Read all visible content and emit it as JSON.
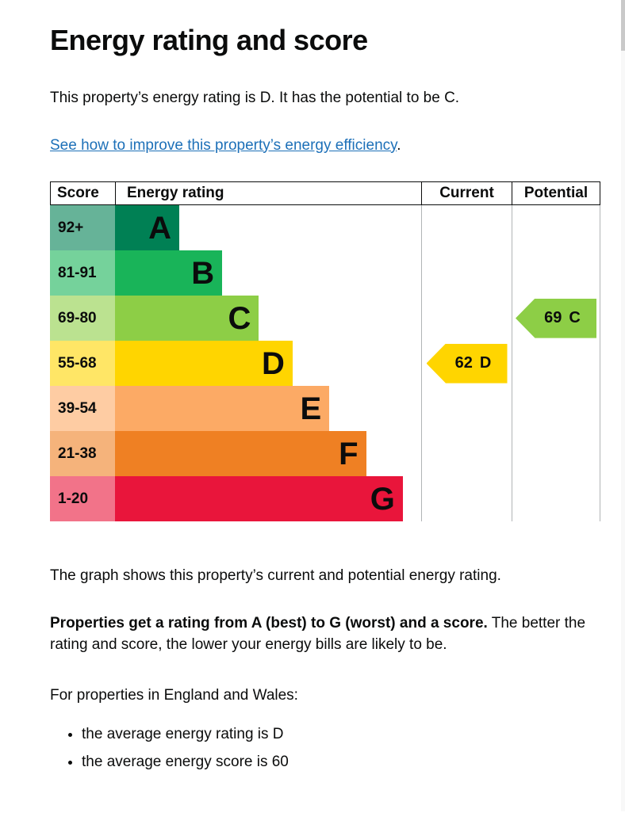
{
  "page": {
    "title": "Energy rating and score",
    "intro": "This property’s energy rating is D. It has the potential to be C.",
    "improve_link": "See how to improve this property’s energy efficiency",
    "improve_suffix": ".",
    "graph_caption": "The graph shows this property’s current and potential energy rating.",
    "explainer_bold": "Properties get a rating from A (best) to G (worst) and a score.",
    "explainer_rest": " The better the rating and score, the lower your energy bills are likely to be.",
    "region_heading": "For properties in England and Wales:",
    "bullets": [
      "the average energy rating is D",
      "the average energy score is 60"
    ]
  },
  "chart_data": {
    "type": "bar",
    "title": "Energy rating and score",
    "headers": {
      "score": "Score",
      "rating": "Energy rating",
      "current": "Current",
      "potential": "Potential"
    },
    "bands": [
      {
        "score": "92+",
        "letter": "A",
        "color": "#008054",
        "tint": "#66b398",
        "width_pct": 21
      },
      {
        "score": "81-91",
        "letter": "B",
        "color": "#19b459",
        "tint": "#75d29b",
        "width_pct": 35
      },
      {
        "score": "69-80",
        "letter": "C",
        "color": "#8dce46",
        "tint": "#bbe290",
        "width_pct": 47
      },
      {
        "score": "55-68",
        "letter": "D",
        "color": "#ffd500",
        "tint": "#ffe666",
        "width_pct": 58
      },
      {
        "score": "39-54",
        "letter": "E",
        "color": "#fcaa65",
        "tint": "#fecca3",
        "width_pct": 70
      },
      {
        "score": "21-38",
        "letter": "F",
        "color": "#ef8023",
        "tint": "#f5b37b",
        "width_pct": 82
      },
      {
        "score": "1-20",
        "letter": "G",
        "color": "#e9153b",
        "tint": "#f27389",
        "width_pct": 94
      }
    ],
    "current": {
      "score": "62",
      "letter": "D",
      "band_row": 3,
      "color": "#ffd500"
    },
    "potential": {
      "score": "69",
      "letter": "C",
      "band_row": 2,
      "color": "#8dce46"
    }
  },
  "colors": {
    "text": "#0b0c0c",
    "link": "#1d70b8",
    "grid_light": "#b1b4b6",
    "grid_dark": "#0b0c0c"
  }
}
